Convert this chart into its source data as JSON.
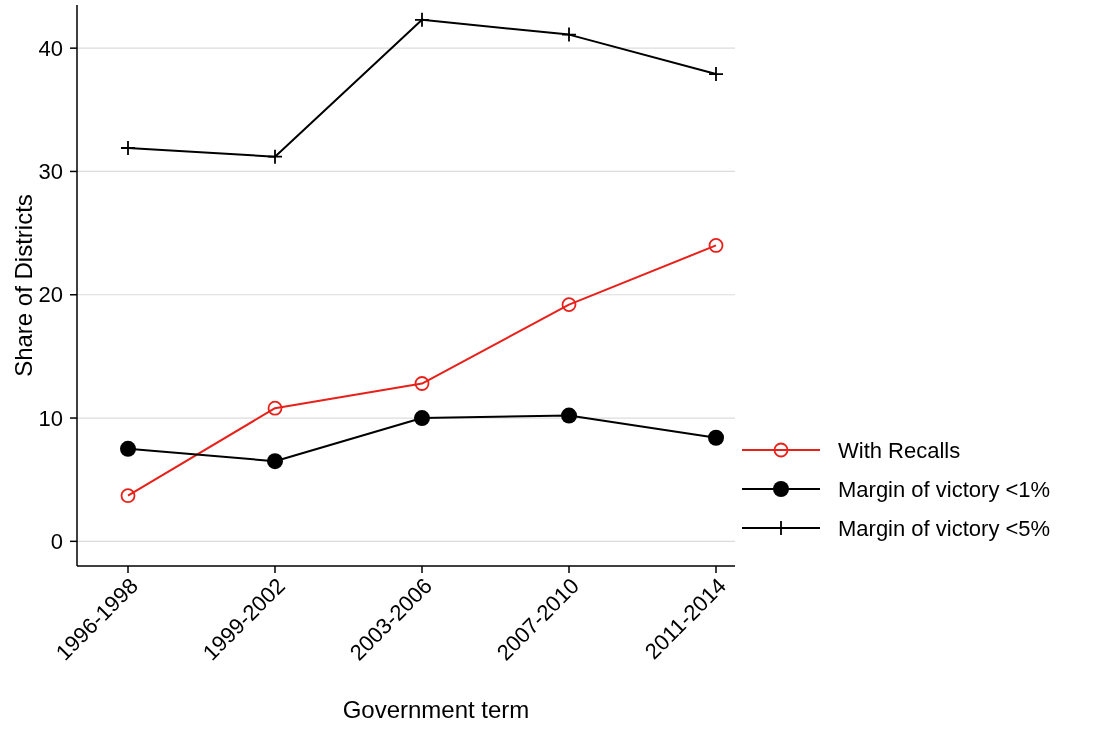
{
  "chart_data": {
    "type": "line",
    "xlabel": "Government term",
    "ylabel": "Share of Districts",
    "categories": [
      "1996-1998",
      "1999-2002",
      "2003-2006",
      "2007-2010",
      "2011-2014"
    ],
    "series": [
      {
        "name": "With Recalls",
        "color": "#e8201a",
        "marker": "circle-open",
        "values": [
          3.7,
          10.8,
          12.8,
          19.2,
          24.0
        ]
      },
      {
        "name": "Margin of victory <1%",
        "color": "#000000",
        "marker": "circle",
        "values": [
          7.5,
          6.5,
          10.0,
          10.2,
          8.4
        ]
      },
      {
        "name": "Margin of victory <5%",
        "color": "#000000",
        "marker": "cross",
        "values": [
          31.9,
          31.2,
          42.3,
          41.1,
          37.9
        ]
      }
    ],
    "ylim": [
      -2,
      43.5
    ],
    "yticks": [
      0,
      10,
      20,
      30,
      40
    ],
    "grid": "y",
    "legend": "right",
    "line_style": "solid"
  }
}
